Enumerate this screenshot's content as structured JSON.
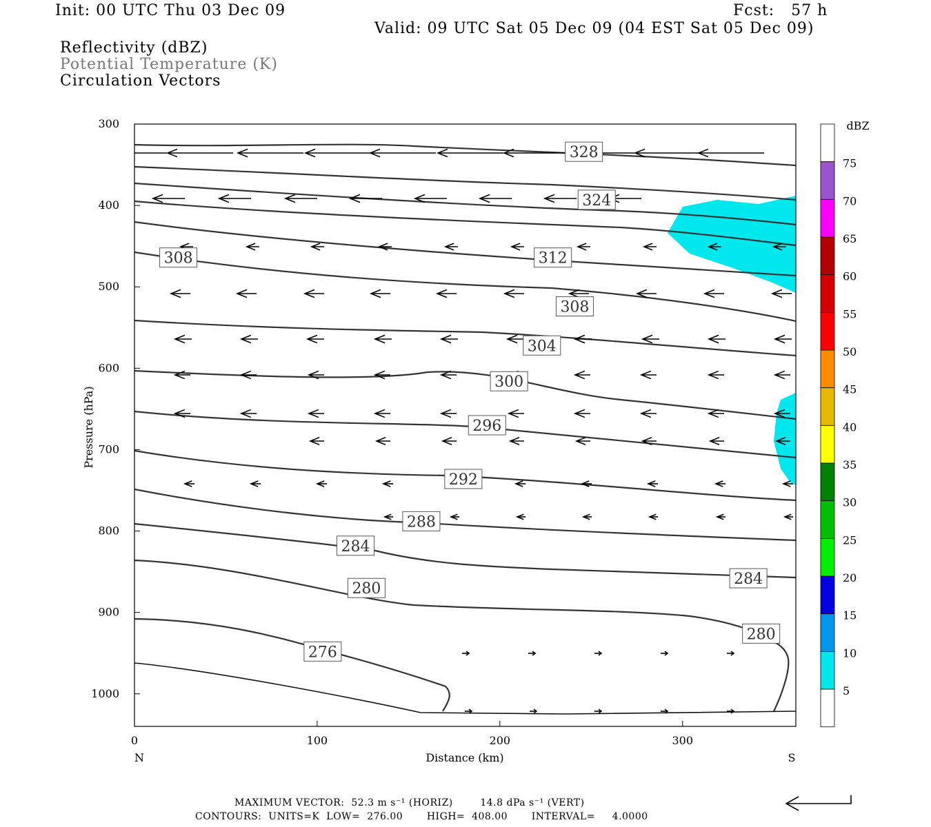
{
  "header": {
    "init": "Init: 00 UTC Thu 03 Dec 09",
    "fcst": "Fcst:   57 h",
    "valid": "Valid: 09 UTC Sat 05 Dec 09 (04 EST Sat 05 Dec 09)",
    "field1": "Reflectivity (dBZ)",
    "field2": "Potential Temperature (K)",
    "field3": "Circulation Vectors"
  },
  "footer": {
    "maxvec": "MAXIMUM VECTOR:  52.3 m s⁻¹ (HORIZ)        14.8 dPa s⁻¹ (VERT)",
    "contours": "CONTOURS:  UNITS=K  LOW=  276.00       HIGH=  408.00       INTERVAL=     4.0000"
  },
  "colors": {
    "reflectivity_5": "#00e8ee",
    "contour": "#333333"
  },
  "chart_data": {
    "type": "cross-section",
    "xlabel": "Distance (km)",
    "ylabel": "Pressure (hPa)",
    "xlim": [
      0,
      362
    ],
    "ylim": [
      300,
      1040
    ],
    "x_ticks": [
      0,
      100,
      200,
      300
    ],
    "y_ticks": [
      300,
      400,
      500,
      600,
      700,
      800,
      900,
      1000
    ],
    "x_end_labels": {
      "left": "N",
      "right": "S"
    },
    "colorbar": {
      "title": "dBZ",
      "labels": [
        5,
        10,
        15,
        20,
        25,
        30,
        35,
        40,
        45,
        50,
        55,
        60,
        65,
        70,
        75
      ],
      "colors": [
        "#00e8ee",
        "#0096ee",
        "#0000e0",
        "#00ee00",
        "#00c000",
        "#008000",
        "#ffff00",
        "#e6b800",
        "#ff8c00",
        "#ff0000",
        "#d60000",
        "#b20000",
        "#ff00ff",
        "#9955cc",
        "#ffffff"
      ]
    },
    "contour_labels": [
      {
        "value": "328",
        "x": 246,
        "p": 334
      },
      {
        "value": "324",
        "x": 253,
        "p": 393
      },
      {
        "value": "312",
        "x": 229,
        "p": 464
      },
      {
        "value": "308",
        "x": 24,
        "p": 464
      },
      {
        "value": "308",
        "x": 241,
        "p": 524
      },
      {
        "value": "304",
        "x": 223,
        "p": 572
      },
      {
        "value": "300",
        "x": 205,
        "p": 616
      },
      {
        "value": "296",
        "x": 193,
        "p": 670
      },
      {
        "value": "292",
        "x": 180,
        "p": 736
      },
      {
        "value": "288",
        "x": 157,
        "p": 788
      },
      {
        "value": "284",
        "x": 121,
        "p": 818
      },
      {
        "value": "284",
        "x": 336,
        "p": 858
      },
      {
        "value": "280",
        "x": 127,
        "p": 870
      },
      {
        "value": "280",
        "x": 343,
        "p": 926
      },
      {
        "value": "276",
        "x": 103,
        "p": 948
      }
    ]
  }
}
